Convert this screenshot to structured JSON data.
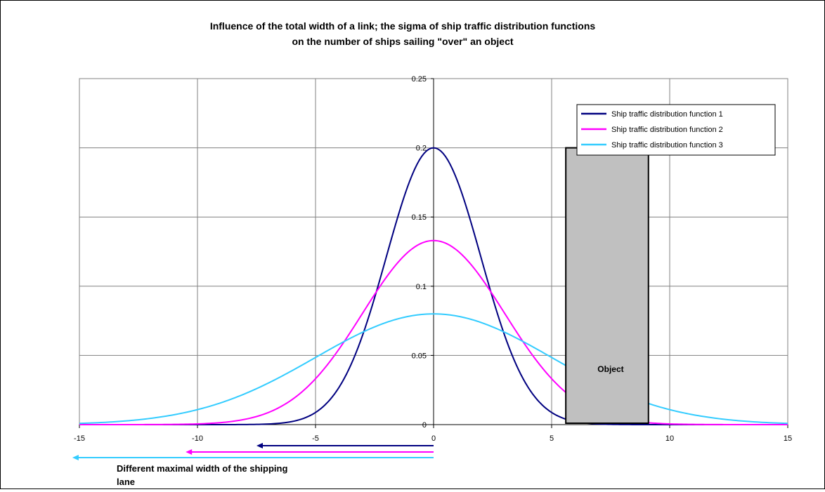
{
  "chart_data": {
    "type": "line",
    "title_lines": [
      "Influence of the total width of a link; the sigma of ship traffic distribution functions",
      "on the number of ships sailing \"over\" an object"
    ],
    "xlabel": "",
    "ylabel": "",
    "xlim": [
      -15,
      15
    ],
    "ylim": [
      0,
      0.25
    ],
    "x_ticks": [
      "-15",
      "-10",
      "-5",
      "0",
      "5",
      "10",
      "15"
    ],
    "y_ticks": [
      "0",
      "0.05",
      "0.1",
      "0.15",
      "0.2",
      "0.25"
    ],
    "grid": true,
    "legend_position": "top-right",
    "series": [
      {
        "name": "Ship traffic distribution function 1",
        "color": "#000080",
        "mean": 0,
        "sigma": 2.0,
        "peak": 0.2
      },
      {
        "name": "Ship traffic distribution function 2",
        "color": "#ff00ff",
        "mean": 0,
        "sigma": 3.0,
        "peak": 0.133
      },
      {
        "name": "Ship traffic distribution function 3",
        "color": "#33ccff",
        "mean": 0,
        "sigma": 5.0,
        "peak": 0.08
      }
    ],
    "object": {
      "label": "Object",
      "x_start": 5.6,
      "x_end": 9.1,
      "y_top": 0.2,
      "fill": "#c0c0c0"
    },
    "width_arrows": [
      {
        "from": 0,
        "to": -7.5,
        "color": "#000080"
      },
      {
        "from": 0,
        "to": -10.5,
        "color": "#ff00ff"
      },
      {
        "from": 0,
        "to": -15.3,
        "color": "#33ccff"
      }
    ],
    "arrow_annotation_lines": [
      "Different maximal width of the shipping",
      "lane"
    ]
  }
}
